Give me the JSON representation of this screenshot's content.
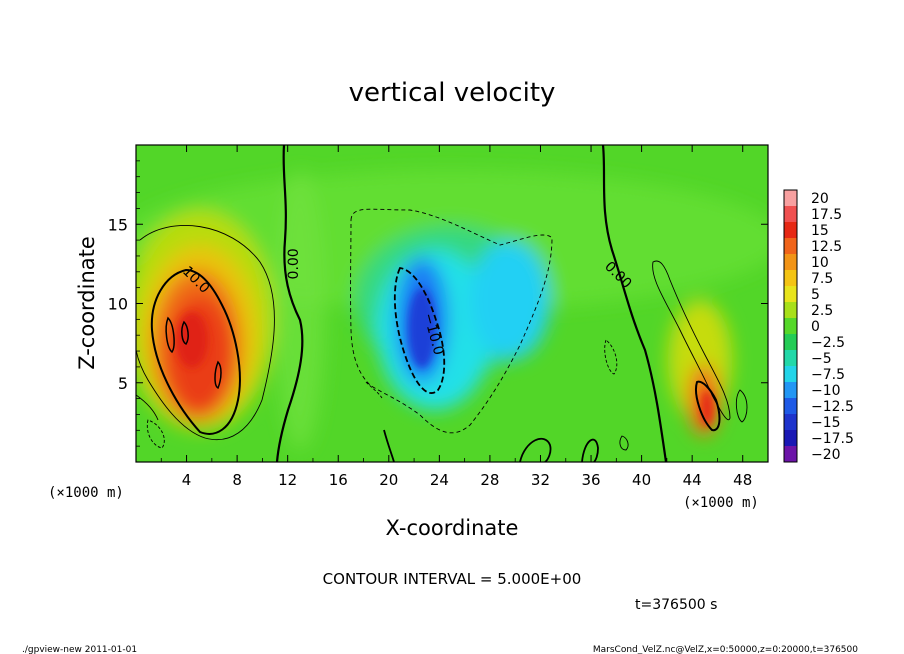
{
  "chart_data": {
    "type": "heatmap",
    "title": "vertical velocity",
    "xlabel": "X-coordinate",
    "ylabel": "Z-coordinate",
    "x_unit_left": "(×1000 m)",
    "x_unit_right": "(×1000 m)",
    "xlim": [
      0,
      50
    ],
    "ylim": [
      0,
      20
    ],
    "xticks": [
      4,
      8,
      12,
      16,
      20,
      24,
      28,
      32,
      36,
      40,
      44,
      48
    ],
    "yticks": [
      5,
      10,
      15
    ],
    "colorbar": {
      "levels": [
        20,
        17.5,
        15,
        12.5,
        10,
        7.5,
        5,
        2.5,
        0,
        -2.5,
        -5,
        -7.5,
        -10,
        -12.5,
        -15,
        -17.5,
        -20
      ],
      "labels": [
        "20",
        "17.5",
        "15",
        "12.5",
        "10",
        "7.5",
        "5",
        "2.5",
        "0",
        "−2.5",
        "−5",
        "−7.5",
        "−10",
        "−12.5",
        "−15",
        "−17.5",
        "−20"
      ]
    },
    "contour_labels": [
      {
        "text": "10.0",
        "x": 4.5,
        "y": 11.3
      },
      {
        "text": "0.00",
        "x": 12.8,
        "y": 12.5
      },
      {
        "text": "−10.0",
        "x": 23.2,
        "y": 8.0
      },
      {
        "text": "0.00",
        "x": 37.9,
        "y": 11.6
      }
    ],
    "features": [
      {
        "name": "updraft-core",
        "x": 5.2,
        "z": 8.0,
        "w_max": 15
      },
      {
        "name": "downdraft-core",
        "x": 22.0,
        "z": 8.0,
        "w_min": -12.5
      },
      {
        "name": "secondary-updraft",
        "x": 45.3,
        "z": 3.5,
        "w_max": 12.5
      }
    ]
  },
  "annotations": {
    "contour_interval": "CONTOUR INTERVAL = 5.000E+00",
    "time": "t=376500 s",
    "footer_left": "./gpview-new  2011-01-01",
    "footer_right": "MarsCond_VelZ.nc@VelZ,x=0:50000,z=0:20000,t=376500"
  }
}
